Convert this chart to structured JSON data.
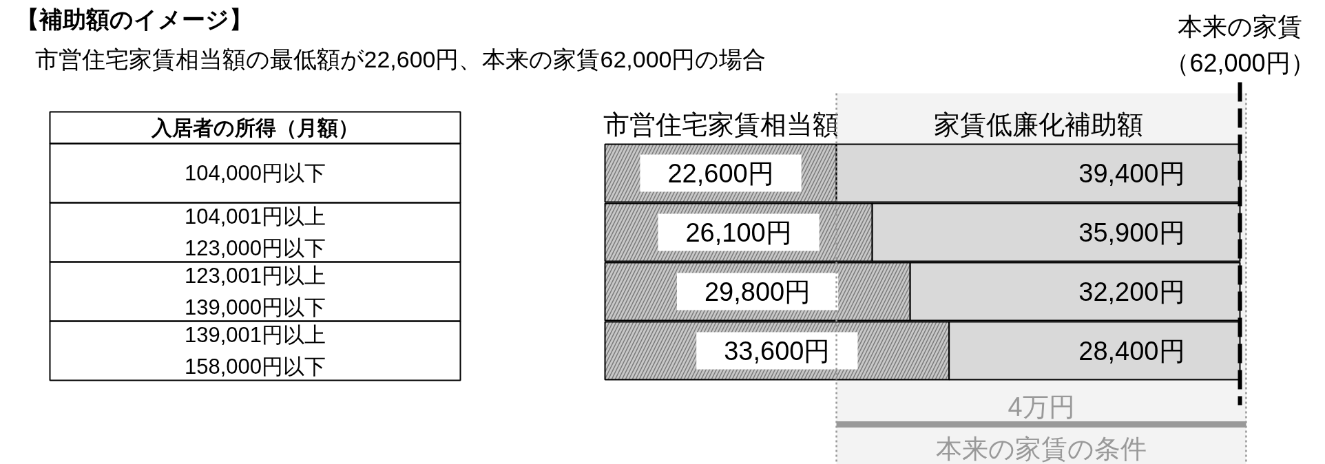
{
  "chart_data": {
    "type": "bar",
    "orientation": "horizontal",
    "stacked": true,
    "title": "【補助額のイメージ】",
    "subtitle": "市営住宅家賃相当額の最低額が22,600円、本来の家賃62,000円の場合",
    "ylabel": "入居者の所得（月額）",
    "categories": [
      "104,000円以下",
      "104,001円以上\n123,000円以下",
      "123,001円以上\n139,000円以下",
      "139,001円以上\n158,000円以下"
    ],
    "series": [
      {
        "name": "市営住宅家賃相当額",
        "color": "#c8c8c8",
        "values": [
          22600,
          26100,
          29800,
          33600
        ],
        "value_labels": [
          "22,600円",
          "26,100円",
          "29,800円",
          "33,600円"
        ]
      },
      {
        "name": "家賃低廉化補助額",
        "color": "#d9d9d9",
        "values": [
          39400,
          35900,
          32200,
          28400
        ],
        "value_labels": [
          "39,400円",
          "35,900円",
          "32,200円",
          "28,400円"
        ]
      }
    ],
    "ref_lines": [
      {
        "axis": "x",
        "value": 62000,
        "label": "本来の家賃（62,000円）",
        "color": "#000000",
        "line_style": "dashed"
      },
      {
        "axis": "x",
        "value": 22600,
        "color": "#999999",
        "line_style": "dotted"
      },
      {
        "axis": "x",
        "value": 62600,
        "color": "#999999",
        "line_style": "dotted"
      }
    ],
    "bands": [
      {
        "axis": "x",
        "from": 22600,
        "to": 62600,
        "label": "4万円",
        "color": "#999999"
      }
    ],
    "annotations": [
      "本来の家賃の条件"
    ],
    "tick_labels": false
  }
}
